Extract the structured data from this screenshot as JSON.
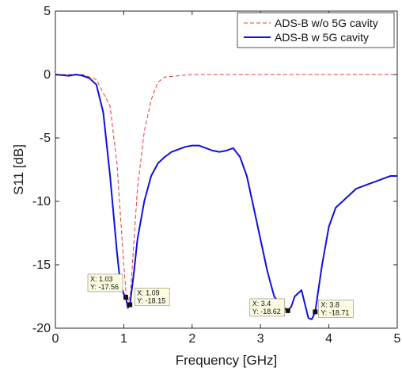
{
  "chart_data": {
    "type": "line",
    "xlabel": "Frequency [GHz]",
    "ylabel": "S11 [dB]",
    "xlim": [
      0,
      5
    ],
    "ylim": [
      -20,
      5
    ],
    "xticks": [
      0,
      1,
      2,
      3,
      4,
      5
    ],
    "yticks": [
      5,
      0,
      -5,
      -10,
      -15,
      -20
    ],
    "grid": false,
    "legend_position": "top-right",
    "series": [
      {
        "name": "ADS-B w/o 5G cavity",
        "color": "#e8383b",
        "style": "dashed",
        "x": [
          0,
          0.2,
          0.4,
          0.6,
          0.8,
          0.9,
          1.0,
          1.05,
          1.1,
          1.15,
          1.2,
          1.3,
          1.4,
          1.5,
          1.6,
          1.8,
          2.0,
          3.0,
          4.0,
          5.0
        ],
        "y": [
          0,
          0,
          0,
          -0.4,
          -2.5,
          -7,
          -15,
          -18.3,
          -17.2,
          -13,
          -9,
          -4.5,
          -2,
          -0.6,
          -0.2,
          -0.1,
          0,
          0,
          0,
          0
        ]
      },
      {
        "name": "ADS-B w 5G cavity",
        "color": "#1010e0",
        "style": "solid",
        "x": [
          0,
          0.2,
          0.3,
          0.4,
          0.5,
          0.6,
          0.7,
          0.8,
          0.9,
          0.95,
          1.0,
          1.03,
          1.06,
          1.09,
          1.15,
          1.2,
          1.3,
          1.4,
          1.5,
          1.6,
          1.7,
          1.8,
          1.9,
          2.0,
          2.1,
          2.2,
          2.3,
          2.4,
          2.5,
          2.6,
          2.7,
          2.8,
          2.9,
          3.0,
          3.1,
          3.2,
          3.3,
          3.4,
          3.45,
          3.5,
          3.6,
          3.7,
          3.75,
          3.8,
          3.9,
          4.0,
          4.1,
          4.2,
          4.3,
          4.4,
          4.5,
          4.6,
          4.7,
          4.8,
          4.9,
          5.0
        ],
        "y": [
          0,
          -0.1,
          0,
          -0.1,
          -0.3,
          -0.8,
          -3,
          -8,
          -14,
          -16.5,
          -17.3,
          -17.56,
          -18.4,
          -18.15,
          -15.5,
          -13,
          -10,
          -8,
          -7,
          -6.5,
          -6.1,
          -5.9,
          -5.7,
          -5.6,
          -5.6,
          -5.8,
          -6,
          -6.1,
          -6,
          -5.8,
          -6.5,
          -8,
          -10.5,
          -13,
          -15.5,
          -17.5,
          -18.2,
          -18.62,
          -18.3,
          -17.5,
          -17,
          -19.2,
          -19.3,
          -18.71,
          -15,
          -12,
          -10.5,
          -10,
          -9.5,
          -9,
          -8.8,
          -8.6,
          -8.4,
          -8.2,
          -8.0,
          -8.0
        ]
      }
    ],
    "annotations": [
      {
        "x": 1.03,
        "y": -17.56,
        "line1": "X: 1.03",
        "line2": "Y: -17.56"
      },
      {
        "x": 1.09,
        "y": -18.15,
        "line1": "X: 1.09",
        "line2": "Y: -18.15"
      },
      {
        "x": 3.4,
        "y": -18.62,
        "line1": "X: 3.4",
        "line2": "Y: -18.62"
      },
      {
        "x": 3.8,
        "y": -18.71,
        "line1": "X: 3.8",
        "line2": "Y: -18.71"
      }
    ]
  }
}
